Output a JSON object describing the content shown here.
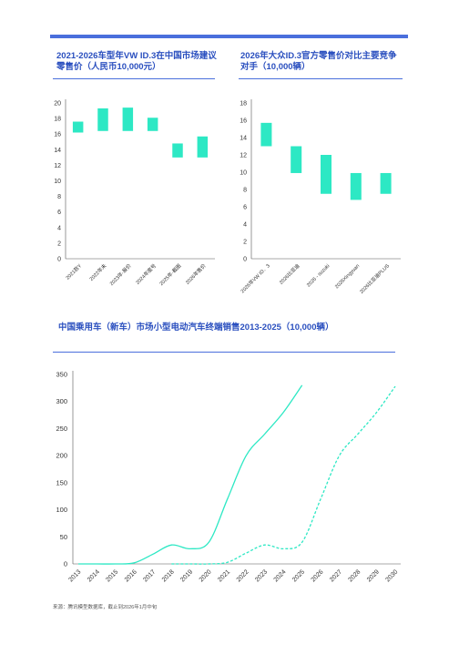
{
  "chart_data": [
    {
      "type": "bar",
      "title": "2021-2026车型年VW ID.3在中国市场建议零售价（人民币10,000元）",
      "categories": [
        "2021款Y",
        "2022年未",
        "2023年·股价",
        "2024年度号",
        "2025年·截图",
        "2026年售价"
      ],
      "ranges": [
        [
          16.2,
          17.6
        ],
        [
          16.4,
          19.3
        ],
        [
          16.4,
          19.4
        ],
        [
          16.4,
          18.1
        ],
        [
          13.0,
          14.8
        ],
        [
          13.0,
          15.7
        ]
      ],
      "ylim": [
        0,
        20
      ],
      "yticks": [
        0,
        2,
        4,
        6,
        8,
        10,
        12,
        14,
        16,
        18,
        20
      ],
      "color": "#2de8c4"
    },
    {
      "type": "bar",
      "title": "2026年大众ID.3官方零售价对比主要竞争对手（10,000辆）",
      "categories": [
        "2026年VW ID．3",
        "2026比亚迪",
        "2026 ‑ suzuki",
        "2026Xingyuan",
        "2026比亚迪PLUS"
      ],
      "ranges": [
        [
          13.0,
          15.7
        ],
        [
          9.9,
          13.0
        ],
        [
          7.5,
          12.0
        ],
        [
          6.8,
          9.9
        ],
        [
          7.5,
          9.9
        ]
      ],
      "ylim": [
        0,
        18
      ],
      "yticks": [
        0,
        2,
        4,
        6,
        8,
        10,
        12,
        14,
        16,
        18
      ],
      "color": "#2de8c4"
    },
    {
      "type": "line",
      "title": "中国乘用车（新车）市场小型电动汽车终端销售2013-2025（10,000辆）",
      "x": [
        "2013",
        "2014",
        "2015",
        "2016",
        "2017",
        "2018",
        "2019",
        "2020",
        "2021",
        "2022",
        "2023",
        "2024",
        "2025",
        "2026",
        "2027",
        "2028",
        "2029",
        "2030"
      ],
      "ylim": [
        0,
        350
      ],
      "yticks": [
        0,
        50,
        100,
        150,
        200,
        250,
        300,
        350
      ],
      "series": [
        {
          "style": "solid",
          "points": [
            [
              2013,
              0
            ],
            [
              2014,
              0
            ],
            [
              2015,
              0
            ],
            [
              2016,
              2
            ],
            [
              2017,
              18
            ],
            [
              2018,
              35
            ],
            [
              2019,
              28
            ],
            [
              2020,
              40
            ],
            [
              2021,
              120
            ],
            [
              2022,
              200
            ],
            [
              2023,
              240
            ],
            [
              2024,
              280
            ],
            [
              2025,
              330
            ]
          ]
        },
        {
          "style": "dashed",
          "points": [
            [
              2018,
              0
            ],
            [
              2019,
              0
            ],
            [
              2020,
              0
            ],
            [
              2021,
              3
            ],
            [
              2022,
              20
            ],
            [
              2023,
              35
            ],
            [
              2024,
              28
            ],
            [
              2025,
              40
            ],
            [
              2026,
              120
            ],
            [
              2027,
              200
            ],
            [
              2028,
              240
            ],
            [
              2029,
              280
            ],
            [
              2030,
              328
            ]
          ]
        }
      ],
      "color": "#2de8c4"
    }
  ],
  "source_note": "来源：腾讯模型数据库，截止到2026年1月中旬"
}
